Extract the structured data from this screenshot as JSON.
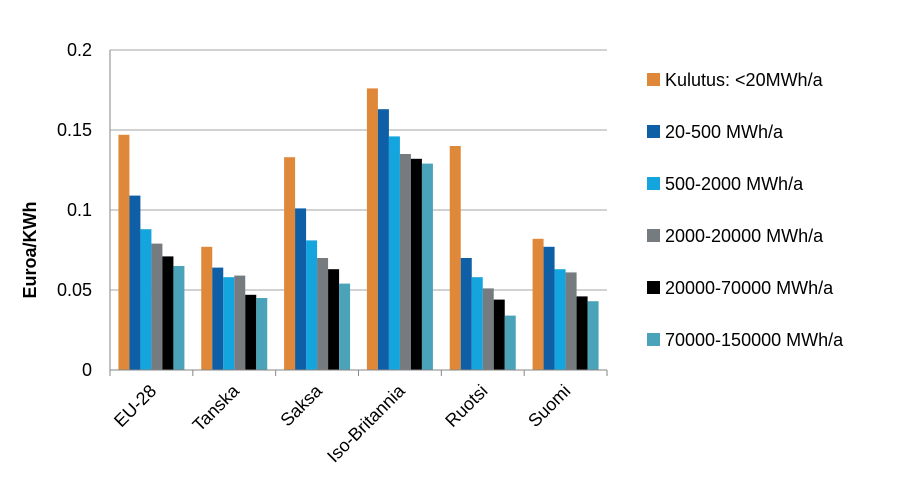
{
  "chart_data": {
    "type": "bar",
    "title": "",
    "xlabel": "",
    "ylabel": "Euroa/KWh",
    "ylim": [
      0,
      0.2
    ],
    "yticks": [
      0,
      0.05,
      0.1,
      0.15,
      0.2
    ],
    "ytick_labels": [
      "0",
      "0.05",
      "0.1",
      "0.15",
      "0.2"
    ],
    "grid": true,
    "legend_position": "right",
    "categories": [
      "EU-28",
      "Tanska",
      "Saksa",
      "Iso-Britannia",
      "Ruotsi",
      "Suomi"
    ],
    "series": [
      {
        "name": "Kulutus: <20MWh/a",
        "color": "#E0883A",
        "values": [
          0.147,
          0.077,
          0.133,
          0.176,
          0.14,
          0.082
        ]
      },
      {
        "name": "20-500 MWh/a",
        "color": "#0F5FA6",
        "values": [
          0.109,
          0.064,
          0.101,
          0.163,
          0.07,
          0.077
        ]
      },
      {
        "name": "500-2000 MWh/a",
        "color": "#14A4DE",
        "values": [
          0.088,
          0.058,
          0.081,
          0.146,
          0.058,
          0.063
        ]
      },
      {
        "name": "2000-20000 MWh/a",
        "color": "#767B80",
        "values": [
          0.079,
          0.059,
          0.07,
          0.135,
          0.051,
          0.061
        ]
      },
      {
        "name": "20000-70000 MWh/a",
        "color": "#000000",
        "values": [
          0.071,
          0.047,
          0.063,
          0.132,
          0.044,
          0.046
        ]
      },
      {
        "name": "70000-150000 MWh/a",
        "color": "#4AA3B8",
        "values": [
          0.065,
          0.045,
          0.054,
          0.129,
          0.034,
          0.043
        ]
      }
    ]
  }
}
